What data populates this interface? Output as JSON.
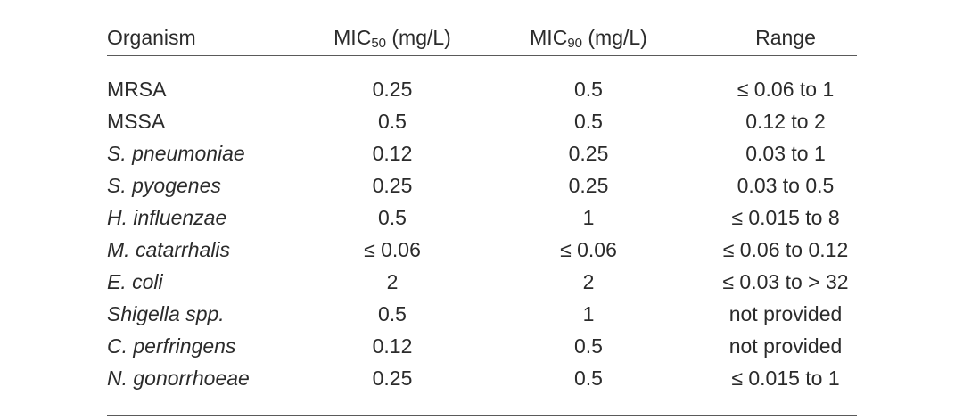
{
  "table": {
    "header": {
      "organism": "Organism",
      "mic50_prefix": "MIC",
      "mic50_sub": "50",
      "mic50_suffix": " (mg/L)",
      "mic90_prefix": "MIC",
      "mic90_sub": "90",
      "mic90_suffix": " (mg/L)",
      "range": "Range"
    },
    "rows": [
      {
        "organism": "MRSA",
        "italic": false,
        "mic50": "0.25",
        "mic90": "0.5",
        "range": "≤ 0.06 to 1"
      },
      {
        "organism": "MSSA",
        "italic": false,
        "mic50": "0.5",
        "mic90": "0.5",
        "range": "0.12 to 2"
      },
      {
        "organism": "S. pneumoniae",
        "italic": true,
        "mic50": "0.12",
        "mic90": "0.25",
        "range": "0.03 to 1"
      },
      {
        "organism": "S. pyogenes",
        "italic": true,
        "mic50": "0.25",
        "mic90": "0.25",
        "range": "0.03 to 0.5"
      },
      {
        "organism": "H. influenzae",
        "italic": true,
        "mic50": "0.5",
        "mic90": "1",
        "range": "≤ 0.015 to 8"
      },
      {
        "organism": "M. catarrhalis",
        "italic": true,
        "mic50": "≤ 0.06",
        "mic90": "≤ 0.06",
        "range": "≤ 0.06 to 0.12"
      },
      {
        "organism": "E. coli",
        "italic": true,
        "mic50": "2",
        "mic90": "2",
        "range": "≤ 0.03 to > 32"
      },
      {
        "organism": "Shigella spp.",
        "italic": true,
        "mic50": "0.5",
        "mic90": "1",
        "range": "not provided"
      },
      {
        "organism": "C. perfringens",
        "italic": true,
        "mic50": "0.12",
        "mic90": "0.5",
        "range": "not provided"
      },
      {
        "organism": "N. gonorrhoeae",
        "italic": true,
        "mic50": "0.25",
        "mic90": "0.5",
        "range": "≤ 0.015 to 1"
      }
    ]
  }
}
